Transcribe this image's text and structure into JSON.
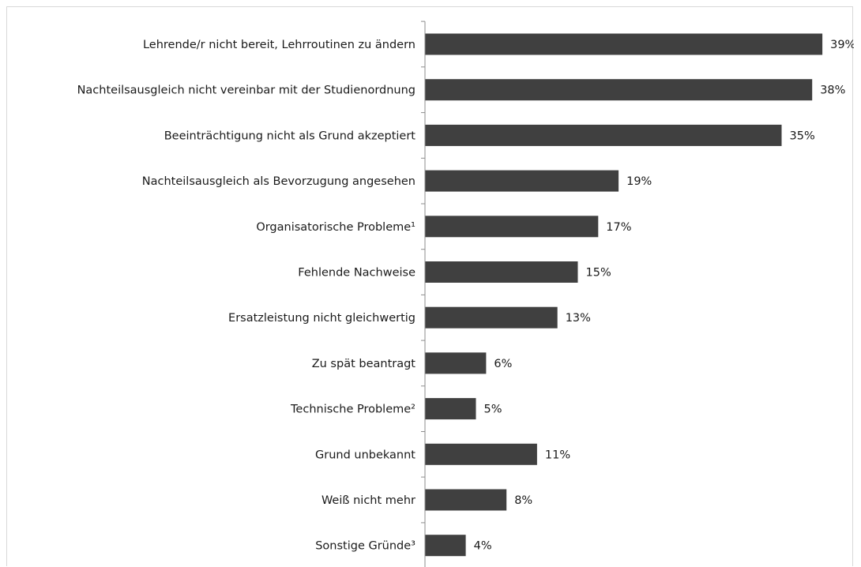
{
  "chart_data": {
    "type": "bar",
    "orientation": "horizontal",
    "title": "",
    "xlabel": "",
    "ylabel": "",
    "categories": [
      "Lehrende/r nicht bereit, Lehrroutinen zu ändern",
      "Nachteilsausgleich nicht vereinbar mit der Studienordnung",
      "Beeinträchtigung nicht als Grund akzeptiert",
      "Nachteilsausgleich als Bevorzugung angesehen",
      "Organisatorische Probleme¹",
      "Fehlende Nachweise",
      "Ersatzleistung nicht gleichwertig",
      "Zu spät beantragt",
      "Technische Probleme²",
      "Grund unbekannt",
      "Weiß nicht mehr",
      "Sonstige Gründe³"
    ],
    "values": [
      39,
      38,
      35,
      19,
      17,
      15,
      13,
      6,
      5,
      11,
      8,
      4
    ],
    "value_labels": [
      "39%",
      "38%",
      "35%",
      "19%",
      "17%",
      "15%",
      "13%",
      "6%",
      "5%",
      "11%",
      "8%",
      "4%"
    ],
    "xlim": [
      0,
      42
    ],
    "unit": "%",
    "grid": false,
    "legend": "none",
    "bar_color": "#404040"
  }
}
